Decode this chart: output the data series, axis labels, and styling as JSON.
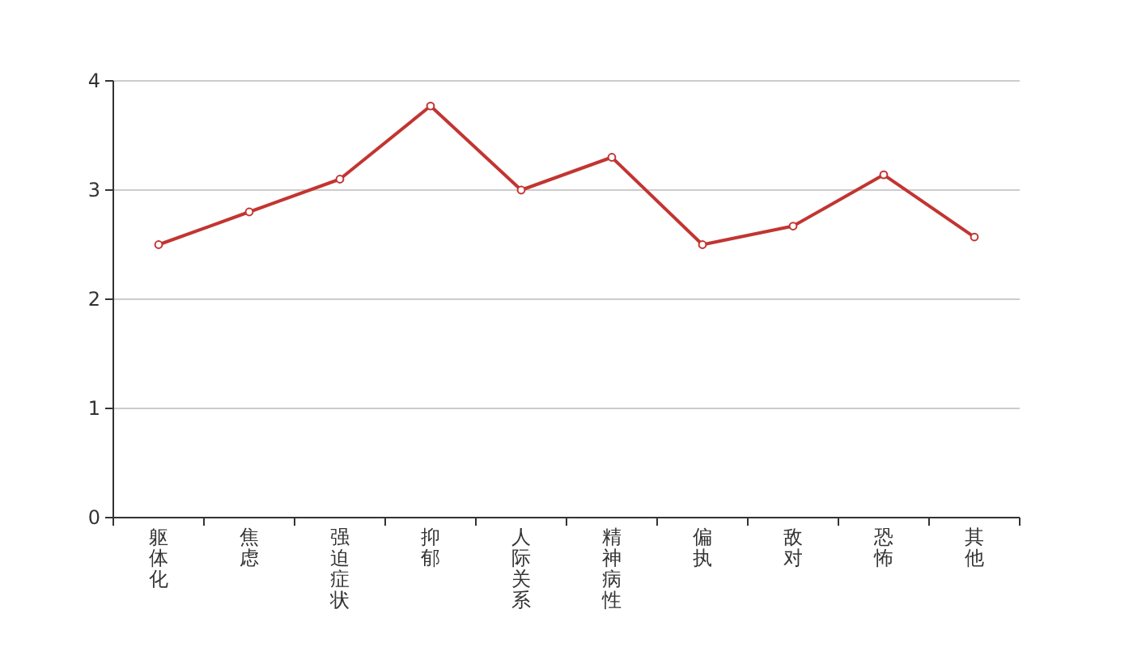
{
  "chart_data": {
    "type": "line",
    "categories": [
      "躯体化",
      "焦虑",
      "强迫症状",
      "抑郁",
      "人际关系",
      "精神病性",
      "偏执",
      "敌对",
      "恐怖",
      "其他"
    ],
    "series": [
      {
        "color": "#c23531",
        "values": [
          2.5,
          2.8,
          3.1,
          3.77,
          3.0,
          3.3,
          2.5,
          2.67,
          3.14,
          2.57
        ]
      }
    ],
    "ylim": [
      0,
      4
    ],
    "yticks": [
      0,
      1,
      2,
      3,
      4
    ],
    "grid": "y",
    "marker": "circle",
    "line_style": "solid"
  }
}
